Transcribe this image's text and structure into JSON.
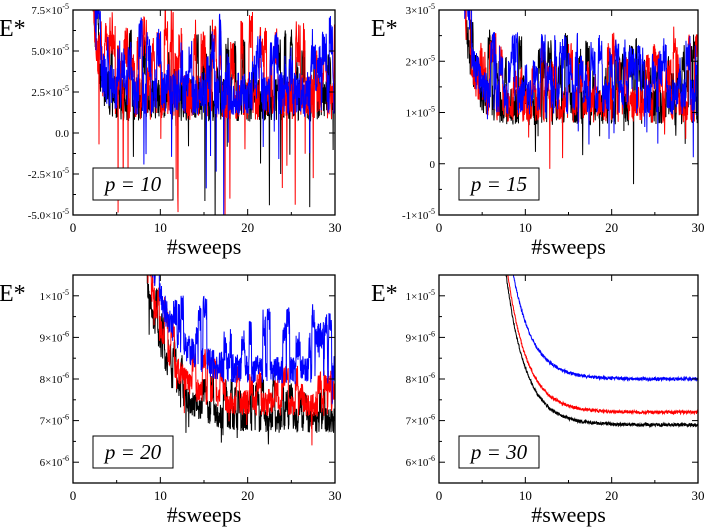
{
  "chart_data": [
    {
      "type": "line",
      "panel_label": "p = 10",
      "p_value": "10",
      "ylabel": "E*",
      "xlabel": "#sweeps",
      "xlim": [
        0,
        30
      ],
      "ylim": [
        -5e-05,
        7.5e-05
      ],
      "x_ticks": [
        "0",
        "10",
        "20",
        "30"
      ],
      "y_ticks": [
        {
          "value": -5e-05,
          "mant": "-5.0×10",
          "exp": "-5"
        },
        {
          "value": -2.5e-05,
          "mant": "-2.5×10",
          "exp": "-5"
        },
        {
          "value": 0,
          "mant": "0.0",
          "exp": ""
        },
        {
          "value": 2.5e-05,
          "mant": "2.5×10",
          "exp": "-5"
        },
        {
          "value": 5e-05,
          "mant": "5.0×10",
          "exp": "-5"
        },
        {
          "value": 7.5e-05,
          "mant": "7.5×10",
          "exp": "-5"
        }
      ],
      "grid": false,
      "series": [
        {
          "color": "#000000",
          "seed": 11,
          "plateau": 2e-05,
          "noise": 1.3e-05,
          "decay_a": 6e-05,
          "decay_tau": 0.7,
          "start": 2.3,
          "spike_rate": 0.05,
          "spike_amp": -6e-05,
          "up_rate": 0.04,
          "up_amp": 2.5e-05
        },
        {
          "color": "#ff0000",
          "seed": 23,
          "plateau": 2.2e-05,
          "noise": 1.4e-05,
          "decay_a": 6e-05,
          "decay_tau": 0.7,
          "start": 2.3,
          "spike_rate": 0.06,
          "spike_amp": -6.5e-05,
          "up_rate": 0.05,
          "up_amp": 3e-05
        },
        {
          "color": "#0000ff",
          "seed": 37,
          "plateau": 2.5e-05,
          "noise": 1.4e-05,
          "decay_a": 6e-05,
          "decay_tau": 0.7,
          "start": 2.3,
          "spike_rate": 0.05,
          "spike_amp": -6e-05,
          "up_rate": 0.05,
          "up_amp": 2.5e-05
        }
      ]
    },
    {
      "type": "line",
      "panel_label": "p = 15",
      "p_value": "15",
      "ylabel": "E*",
      "xlabel": "#sweeps",
      "xlim": [
        0,
        30
      ],
      "ylim": [
        -1e-05,
        3e-05
      ],
      "x_ticks": [
        "0",
        "10",
        "20",
        "30"
      ],
      "y_ticks": [
        {
          "value": -1e-05,
          "mant": "-1×10",
          "exp": "-5"
        },
        {
          "value": 0,
          "mant": "0",
          "exp": ""
        },
        {
          "value": 1e-05,
          "mant": "1×10",
          "exp": "-5"
        },
        {
          "value": 2e-05,
          "mant": "2×10",
          "exp": "-5"
        },
        {
          "value": 3e-05,
          "mant": "3×10",
          "exp": "-5"
        }
      ],
      "grid": false,
      "series": [
        {
          "color": "#000000",
          "seed": 41,
          "plateau": 1.1e-05,
          "noise": 3.5e-06,
          "decay_a": 2.2e-05,
          "decay_tau": 1.0,
          "start": 2.8,
          "spike_rate": 0.04,
          "spike_amp": -1e-05,
          "up_rate": 0.05,
          "up_amp": 8e-06
        },
        {
          "color": "#ff0000",
          "seed": 53,
          "plateau": 1.15e-05,
          "noise": 3.5e-06,
          "decay_a": 2.2e-05,
          "decay_tau": 1.0,
          "start": 2.8,
          "spike_rate": 0.05,
          "spike_amp": -1.1e-05,
          "up_rate": 0.05,
          "up_amp": 9e-06
        },
        {
          "color": "#0000ff",
          "seed": 67,
          "plateau": 1.3e-05,
          "noise": 3.5e-06,
          "decay_a": 2.2e-05,
          "decay_tau": 1.0,
          "start": 2.8,
          "spike_rate": 0.04,
          "spike_amp": -8e-06,
          "up_rate": 0.05,
          "up_amp": 7e-06
        }
      ]
    },
    {
      "type": "line",
      "panel_label": "p = 20",
      "p_value": "20",
      "ylabel": "E*",
      "xlabel": "#sweeps",
      "xlim": [
        0,
        30
      ],
      "ylim": [
        5.5e-06,
        1.05e-05
      ],
      "x_ticks": [
        "0",
        "10",
        "20",
        "30"
      ],
      "y_ticks": [
        {
          "value": 6e-06,
          "mant": "6×10",
          "exp": "-6"
        },
        {
          "value": 7e-06,
          "mant": "7×10",
          "exp": "-6"
        },
        {
          "value": 8e-06,
          "mant": "8×10",
          "exp": "-6"
        },
        {
          "value": 9e-06,
          "mant": "9×10",
          "exp": "-6"
        },
        {
          "value": 1e-05,
          "mant": "1×10",
          "exp": "-5"
        }
      ],
      "grid": false,
      "series": [
        {
          "color": "#000000",
          "seed": 71,
          "plateau": 7e-06,
          "noise": 3e-07,
          "decay_a": 9e-06,
          "decay_tau": 2.5,
          "start": 6.0,
          "spike_rate": 0.05,
          "spike_amp": -7e-07,
          "up_rate": 0.04,
          "up_amp": 6e-07
        },
        {
          "color": "#ff0000",
          "seed": 83,
          "plateau": 7.4e-06,
          "noise": 3e-07,
          "decay_a": 9e-06,
          "decay_tau": 2.5,
          "start": 6.0,
          "spike_rate": 0.05,
          "spike_amp": -8e-07,
          "up_rate": 0.04,
          "up_amp": 6e-07
        },
        {
          "color": "#0000ff",
          "seed": 97,
          "plateau": 8.2e-06,
          "noise": 3.5e-07,
          "decay_a": 9e-06,
          "decay_tau": 2.5,
          "start": 6.0,
          "spike_rate": 0.04,
          "spike_amp": -6e-07,
          "up_rate": 0.05,
          "up_amp": 9e-07
        }
      ]
    },
    {
      "type": "line",
      "panel_label": "p = 30",
      "p_value": "30",
      "ylabel": "E*",
      "xlabel": "#sweeps",
      "xlim": [
        0,
        30
      ],
      "ylim": [
        5.5e-06,
        1.05e-05
      ],
      "x_ticks": [
        "0",
        "10",
        "20",
        "30"
      ],
      "y_ticks": [
        {
          "value": 6e-06,
          "mant": "6×10",
          "exp": "-6"
        },
        {
          "value": 7e-06,
          "mant": "7×10",
          "exp": "-6"
        },
        {
          "value": 8e-06,
          "mant": "8×10",
          "exp": "-6"
        },
        {
          "value": 9e-06,
          "mant": "9×10",
          "exp": "-6"
        },
        {
          "value": 1e-05,
          "mant": "1×10",
          "exp": "-5"
        }
      ],
      "grid": false,
      "series": [
        {
          "color": "#000000",
          "seed": 101,
          "plateau": 6.9e-06,
          "noise": 4e-08,
          "decay_a": 8.5e-06,
          "decay_tau": 2.3,
          "start": 5.8,
          "spike_rate": 0,
          "spike_amp": 0,
          "up_rate": 0,
          "up_amp": 0
        },
        {
          "color": "#ff0000",
          "seed": 113,
          "plateau": 7.2e-06,
          "noise": 4e-08,
          "decay_a": 8.5e-06,
          "decay_tau": 2.3,
          "start": 5.8,
          "spike_rate": 0,
          "spike_amp": 0,
          "up_rate": 0,
          "up_amp": 0
        },
        {
          "color": "#0000ff",
          "seed": 127,
          "plateau": 8e-06,
          "noise": 4e-08,
          "decay_a": 8.5e-06,
          "decay_tau": 2.3,
          "start": 5.8,
          "spike_rate": 0,
          "spike_amp": 0,
          "up_rate": 0,
          "up_amp": 0
        }
      ]
    }
  ]
}
